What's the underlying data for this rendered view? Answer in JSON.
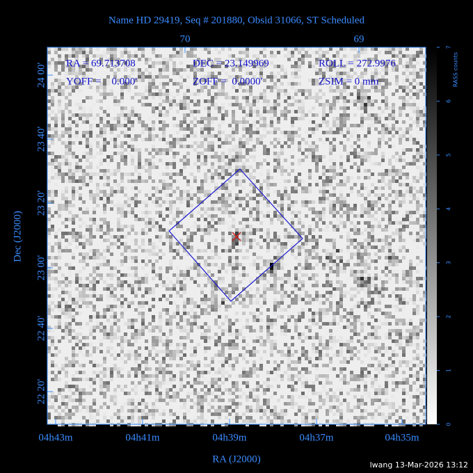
{
  "title": "Name HD 29419, Seq # 201880, Obsid 31066, ST Scheduled",
  "top_axis": {
    "labels": [
      "70",
      "69"
    ]
  },
  "left_axis": {
    "title": "Dec (J2000)",
    "labels": [
      "24 00'",
      "23 40'",
      "23 20'",
      "23 00'",
      "22 40'",
      "22 20'"
    ]
  },
  "bottom_axis": {
    "title": "RA (J2000)",
    "labels": [
      "04h43m",
      "04h41m",
      "04h39m",
      "04h37m",
      "04h35m"
    ]
  },
  "colorbar": {
    "title": "RASS counts",
    "labels": [
      "0",
      "1",
      "2",
      "3",
      "4",
      "5",
      "6",
      "7"
    ]
  },
  "info": [
    [
      "RA = 69.713708",
      "DEC = 23.149969",
      "ROLL = 272.9976"
    ],
    [
      "YOFF =    0.000'",
      "ZOFF =  0.0000'",
      "ZSIM = 0 mm"
    ]
  ],
  "footer": "lwang 13-Mar-2026 13:12"
}
